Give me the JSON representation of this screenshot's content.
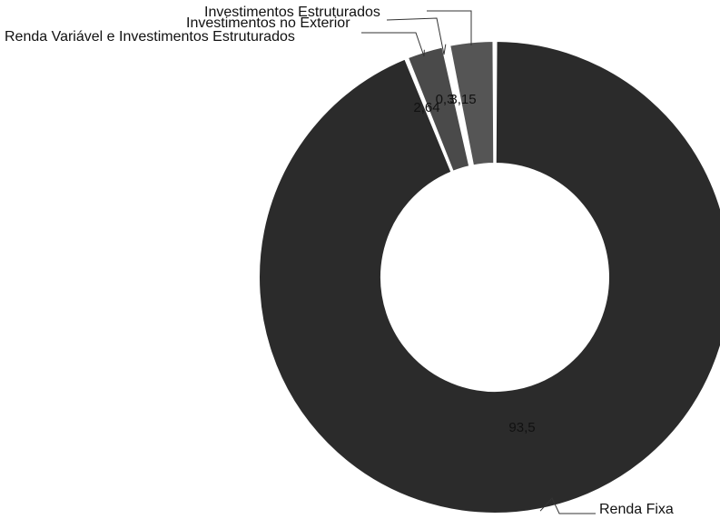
{
  "chart_data": {
    "type": "pie",
    "donut": true,
    "categories": [
      "Renda Fixa",
      "Renda Variável e Investimentos Estruturados",
      "Investimentos no Exterior",
      "Investimentos Estruturados"
    ],
    "values": [
      93.5,
      2.64,
      0.3,
      3.15
    ],
    "value_labels": [
      "93,5",
      "2,64",
      "0,3",
      "3,15"
    ],
    "colors": [
      "#2b2b2b",
      "#4a4a4a",
      "#6a6a6a",
      "#555555"
    ],
    "legend": false
  }
}
